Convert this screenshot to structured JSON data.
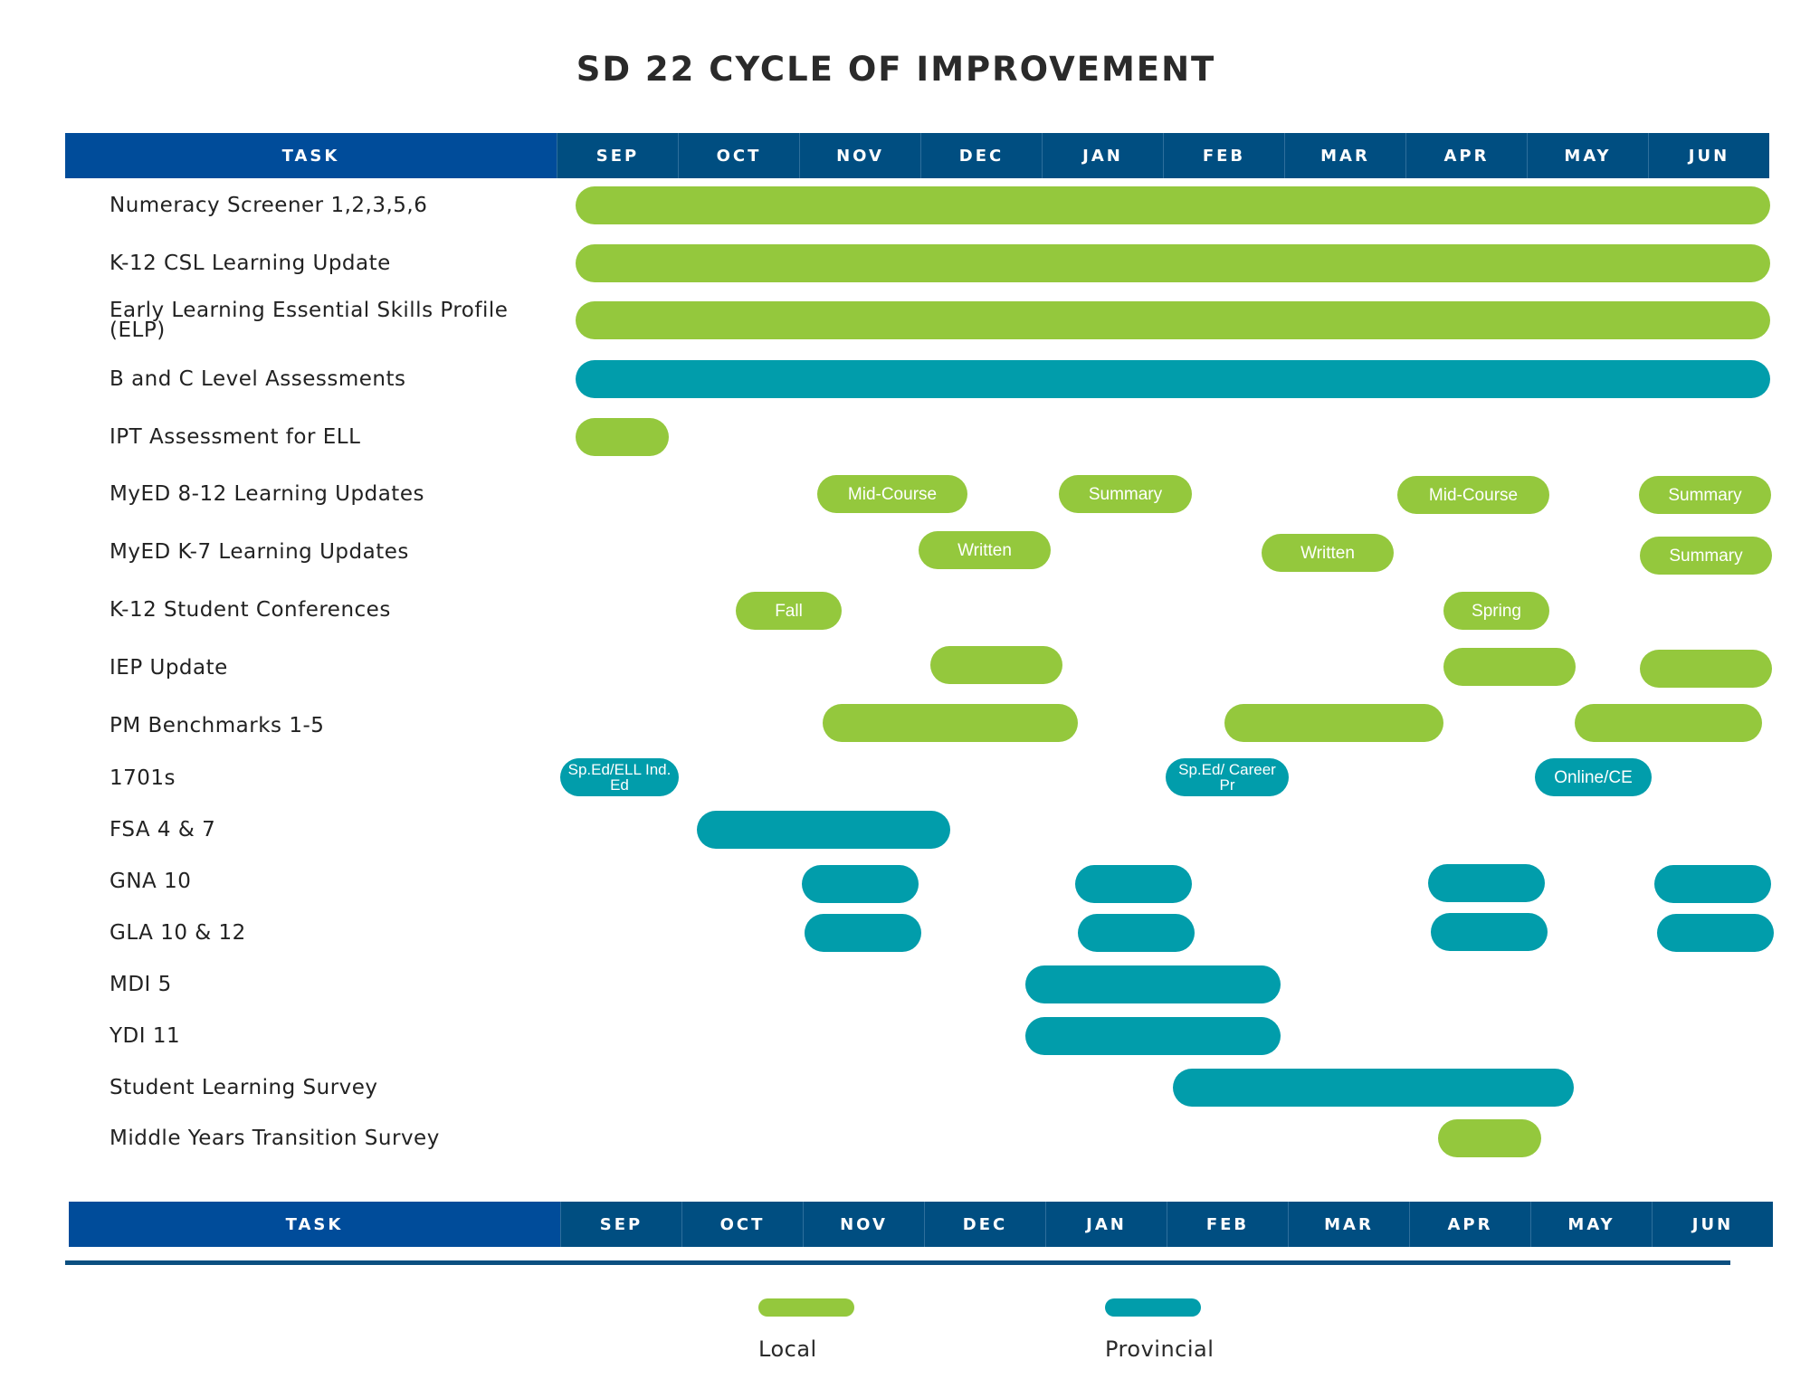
{
  "title": "SD 22 CYCLE OF IMPROVEMENT",
  "header": {
    "task": "TASK",
    "months": [
      "SEP",
      "OCT",
      "NOV",
      "DEC",
      "JAN",
      "FEB",
      "MAR",
      "APR",
      "MAY",
      "JUN"
    ]
  },
  "legend": {
    "local": {
      "label": "Local",
      "color": "#94c83d"
    },
    "provincial": {
      "label": "Provincial",
      "color": "#019dab"
    }
  },
  "tasks": [
    {
      "name": "Numeracy Screener 1,2,3,5,6"
    },
    {
      "name": "K-12 CSL Learning Update"
    },
    {
      "name": "Early Learning Essential Skills Profile (ELP)"
    },
    {
      "name": "B and C Level Assessments"
    },
    {
      "name": "IPT Assessment for ELL"
    },
    {
      "name": "MyED 8-12 Learning Updates",
      "bars": [
        "Mid-Course",
        "Summary",
        "Mid-Course",
        "Summary"
      ]
    },
    {
      "name": "MyED K-7 Learning Updates",
      "bars": [
        "Written",
        "Written",
        "Summary"
      ]
    },
    {
      "name": "K-12 Student Conferences",
      "bars": [
        "Fall",
        "Spring"
      ]
    },
    {
      "name": "IEP Update"
    },
    {
      "name": "PM Benchmarks 1-5"
    },
    {
      "name": "1701s",
      "bars": [
        "Sp.Ed/ELL Ind. Ed",
        "Sp.Ed/ Career Pr",
        "Online/CE"
      ]
    },
    {
      "name": "FSA 4 & 7"
    },
    {
      "name": "GNA 10"
    },
    {
      "name": "GLA 10 & 12"
    },
    {
      "name": "MDI 5"
    },
    {
      "name": "YDI 11"
    },
    {
      "name": "Student Learning Survey"
    },
    {
      "name": "Middle Years Transition Survey"
    }
  ]
}
